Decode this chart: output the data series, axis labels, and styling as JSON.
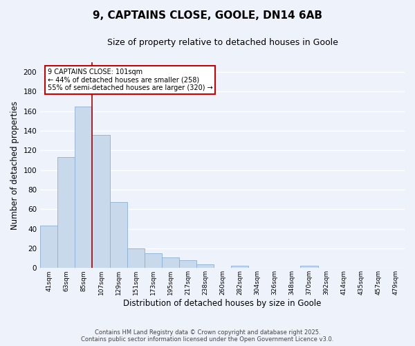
{
  "title": "9, CAPTAINS CLOSE, GOOLE, DN14 6AB",
  "subtitle": "Size of property relative to detached houses in Goole",
  "xlabel": "Distribution of detached houses by size in Goole",
  "ylabel": "Number of detached properties",
  "categories": [
    "41sqm",
    "63sqm",
    "85sqm",
    "107sqm",
    "129sqm",
    "151sqm",
    "173sqm",
    "195sqm",
    "217sqm",
    "238sqm",
    "260sqm",
    "282sqm",
    "304sqm",
    "326sqm",
    "348sqm",
    "370sqm",
    "392sqm",
    "414sqm",
    "435sqm",
    "457sqm",
    "479sqm"
  ],
  "values": [
    43,
    113,
    165,
    136,
    67,
    20,
    15,
    11,
    8,
    4,
    0,
    2,
    0,
    0,
    0,
    2,
    0,
    0,
    0,
    0,
    0
  ],
  "bar_color": "#c9d9ec",
  "bar_edge_color": "#8bafd4",
  "vline_x": 2.5,
  "vline_color": "#aa0000",
  "annotation_box_text": "9 CAPTAINS CLOSE: 101sqm\n← 44% of detached houses are smaller (258)\n55% of semi-detached houses are larger (320) →",
  "ylim": [
    0,
    210
  ],
  "yticks": [
    0,
    20,
    40,
    60,
    80,
    100,
    120,
    140,
    160,
    180,
    200
  ],
  "background_color": "#eef2fb",
  "grid_color": "#ffffff",
  "footer_line1": "Contains HM Land Registry data © Crown copyright and database right 2025.",
  "footer_line2": "Contains public sector information licensed under the Open Government Licence v3.0.",
  "title_fontsize": 11,
  "subtitle_fontsize": 9,
  "bar_width": 1.0
}
